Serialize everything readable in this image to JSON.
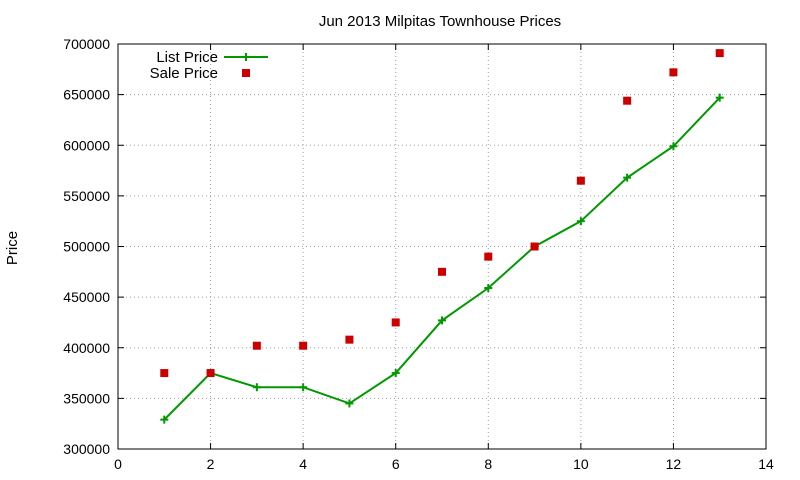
{
  "chart_data": {
    "type": "line",
    "title": "Jun 2013 Milpitas Townhouse Prices",
    "xlabel": "",
    "ylabel": "Price",
    "xlim": [
      0,
      14
    ],
    "ylim": [
      300000,
      700000
    ],
    "xticks": [
      0,
      2,
      4,
      6,
      8,
      10,
      12,
      14
    ],
    "yticks": [
      300000,
      350000,
      400000,
      450000,
      500000,
      550000,
      600000,
      650000,
      700000
    ],
    "grid": true,
    "legend_position": "top-left",
    "series": [
      {
        "name": "List Price",
        "style": "line-plus",
        "color": "#009900",
        "x": [
          1,
          2,
          3,
          4,
          5,
          6,
          7,
          8,
          9,
          10,
          11,
          12,
          13
        ],
        "y": [
          329000,
          375000,
          361000,
          361000,
          345000,
          375000,
          427000,
          459000,
          500000,
          525000,
          568000,
          599000,
          647000
        ]
      },
      {
        "name": "Sale Price",
        "style": "square",
        "color": "#cc0000",
        "x": [
          1,
          2,
          3,
          4,
          5,
          6,
          7,
          8,
          9,
          10,
          11,
          12,
          13
        ],
        "y": [
          375000,
          375000,
          402000,
          402000,
          408000,
          425000,
          475000,
          490000,
          500000,
          565000,
          644000,
          672000,
          691000
        ]
      }
    ]
  }
}
